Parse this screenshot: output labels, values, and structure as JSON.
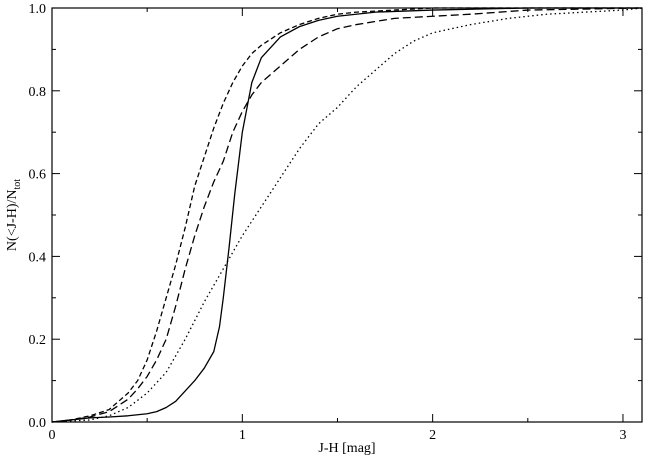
{
  "chart_data": {
    "type": "line",
    "xlabel": "J-H [mag]",
    "ylabel": {
      "main": "N(<J-H)/N",
      "subscript": "tot"
    },
    "xlim": [
      0,
      3.1
    ],
    "ylim": [
      0,
      1.0
    ],
    "x_ticks": [
      0,
      1,
      2,
      3
    ],
    "x_tick_labels": [
      "0",
      "1",
      "2",
      "3"
    ],
    "y_ticks": [
      0,
      0.2,
      0.4,
      0.6,
      0.8,
      1.0
    ],
    "y_tick_labels": [
      "0.0",
      "0.2",
      "0.4",
      "0.6",
      "0.8",
      "1.0"
    ],
    "grid": false,
    "series": [
      {
        "style": "solid",
        "x": [
          0,
          0.1,
          0.2,
          0.3,
          0.4,
          0.5,
          0.55,
          0.6,
          0.65,
          0.7,
          0.75,
          0.8,
          0.85,
          0.88,
          0.9,
          0.93,
          0.96,
          1.0,
          1.05,
          1.1,
          1.2,
          1.3,
          1.4,
          1.5,
          1.7,
          2.0,
          2.5,
          3.1
        ],
        "y": [
          0.0,
          0.005,
          0.01,
          0.012,
          0.015,
          0.02,
          0.025,
          0.035,
          0.05,
          0.075,
          0.1,
          0.13,
          0.17,
          0.23,
          0.3,
          0.42,
          0.55,
          0.7,
          0.82,
          0.88,
          0.93,
          0.955,
          0.97,
          0.98,
          0.99,
          0.995,
          1.0,
          1.0
        ]
      },
      {
        "style": "dashed",
        "x": [
          0,
          0.1,
          0.2,
          0.3,
          0.4,
          0.45,
          0.5,
          0.55,
          0.6,
          0.65,
          0.7,
          0.75,
          0.8,
          0.85,
          0.9,
          0.95,
          1.0,
          1.05,
          1.1,
          1.2,
          1.3,
          1.4,
          1.5,
          1.6,
          1.8,
          2.0,
          2.5,
          3.1
        ],
        "y": [
          0.0,
          0.005,
          0.015,
          0.03,
          0.07,
          0.1,
          0.15,
          0.22,
          0.3,
          0.38,
          0.47,
          0.57,
          0.64,
          0.71,
          0.77,
          0.82,
          0.86,
          0.89,
          0.91,
          0.94,
          0.96,
          0.975,
          0.985,
          0.99,
          0.995,
          1.0,
          1.0,
          1.0
        ]
      },
      {
        "style": "long-dashed",
        "x": [
          0,
          0.1,
          0.2,
          0.3,
          0.4,
          0.45,
          0.5,
          0.55,
          0.6,
          0.65,
          0.7,
          0.75,
          0.8,
          0.85,
          0.9,
          0.95,
          1.0,
          1.05,
          1.1,
          1.2,
          1.3,
          1.4,
          1.5,
          1.6,
          1.8,
          2.0,
          2.2,
          2.5,
          3.1
        ],
        "y": [
          0.0,
          0.005,
          0.012,
          0.025,
          0.055,
          0.08,
          0.11,
          0.15,
          0.2,
          0.28,
          0.37,
          0.45,
          0.52,
          0.58,
          0.63,
          0.7,
          0.75,
          0.79,
          0.82,
          0.86,
          0.9,
          0.93,
          0.95,
          0.96,
          0.975,
          0.98,
          0.985,
          0.995,
          1.0
        ]
      },
      {
        "style": "dotted",
        "x": [
          0,
          0.2,
          0.3,
          0.4,
          0.5,
          0.6,
          0.7,
          0.8,
          0.9,
          1.0,
          1.1,
          1.2,
          1.3,
          1.4,
          1.5,
          1.6,
          1.7,
          1.8,
          1.9,
          2.0,
          2.2,
          2.4,
          2.6,
          2.8,
          3.0,
          3.1
        ],
        "y": [
          0.0,
          0.005,
          0.015,
          0.035,
          0.07,
          0.12,
          0.2,
          0.29,
          0.37,
          0.45,
          0.52,
          0.59,
          0.66,
          0.72,
          0.76,
          0.81,
          0.85,
          0.89,
          0.92,
          0.94,
          0.96,
          0.975,
          0.985,
          0.99,
          0.995,
          1.0
        ]
      }
    ]
  }
}
